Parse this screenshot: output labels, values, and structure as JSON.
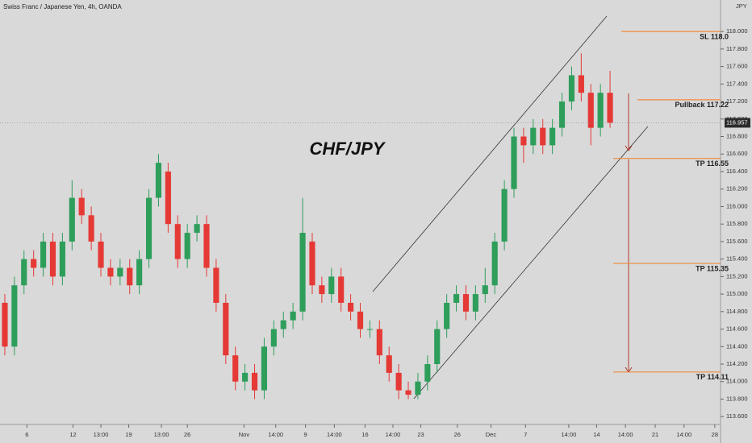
{
  "chart_data": {
    "type": "candlestick",
    "title": "Swiss Franc / Japanese Yen, 4h, OANDA",
    "annotation": "CHF/JPY",
    "currency": "JPY",
    "last_price": {
      "value": 116.957,
      "label": "116.957"
    },
    "up_color": "#2e9e5b",
    "down_color": "#e53935",
    "level_color": "#f08a3c",
    "open": [
      114.9,
      114.4,
      115.1,
      115.4,
      115.3,
      115.6,
      115.2,
      115.6,
      116.1,
      115.9,
      115.6,
      115.3,
      115.2,
      115.3,
      115.1,
      115.4,
      116.1,
      116.4,
      115.8,
      115.4,
      115.7,
      115.8,
      115.3,
      114.9,
      114.3,
      114.0,
      114.1,
      113.9,
      114.4,
      114.6,
      114.7,
      114.8,
      115.6,
      115.1,
      115.0,
      115.2,
      114.9,
      114.8,
      114.6,
      114.6,
      114.3,
      114.1,
      113.9,
      113.85,
      114.0,
      114.2,
      114.6,
      114.9,
      115.0,
      114.8,
      115.0,
      115.1,
      115.6,
      116.2,
      116.8,
      116.7,
      116.9,
      116.7,
      116.9,
      117.2,
      117.5,
      117.3,
      116.9,
      117.3
    ],
    "high": [
      115.0,
      115.2,
      115.5,
      115.5,
      115.7,
      115.7,
      115.7,
      116.3,
      116.2,
      116.0,
      115.7,
      115.4,
      115.4,
      115.4,
      115.5,
      116.2,
      116.6,
      116.5,
      115.9,
      115.8,
      115.9,
      115.9,
      115.4,
      115.0,
      114.4,
      114.2,
      114.2,
      114.5,
      114.7,
      114.8,
      114.9,
      116.1,
      115.7,
      115.2,
      115.3,
      115.3,
      115.0,
      114.9,
      114.7,
      114.7,
      114.4,
      114.2,
      114.0,
      114.1,
      114.3,
      114.7,
      115.0,
      115.1,
      115.1,
      115.1,
      115.3,
      115.7,
      116.3,
      116.9,
      116.9,
      117.0,
      117.0,
      117.0,
      117.3,
      117.6,
      117.75,
      117.4,
      117.4,
      117.55
    ],
    "low": [
      114.3,
      114.3,
      115.0,
      115.2,
      115.2,
      115.1,
      115.1,
      115.5,
      115.8,
      115.5,
      115.2,
      115.1,
      115.1,
      115.0,
      115.0,
      115.3,
      116.0,
      115.7,
      115.3,
      115.3,
      115.6,
      115.2,
      114.8,
      114.2,
      113.9,
      113.9,
      113.8,
      113.8,
      114.3,
      114.5,
      114.6,
      114.7,
      115.0,
      114.9,
      114.9,
      114.8,
      114.7,
      114.5,
      114.5,
      114.2,
      114.0,
      113.8,
      113.8,
      113.8,
      113.9,
      114.1,
      114.5,
      114.8,
      114.7,
      114.7,
      114.9,
      115.0,
      115.5,
      116.1,
      116.5,
      116.6,
      116.6,
      116.6,
      116.8,
      117.1,
      117.2,
      116.7,
      116.8,
      116.9
    ],
    "close": [
      114.4,
      115.1,
      115.4,
      115.3,
      115.6,
      115.2,
      115.6,
      116.1,
      115.9,
      115.6,
      115.3,
      115.2,
      115.3,
      115.1,
      115.4,
      116.1,
      116.5,
      115.8,
      115.4,
      115.7,
      115.8,
      115.3,
      114.9,
      114.3,
      114.0,
      114.1,
      113.9,
      114.4,
      114.6,
      114.7,
      114.8,
      115.7,
      115.1,
      115.0,
      115.2,
      114.9,
      114.8,
      114.6,
      114.6,
      114.3,
      114.1,
      113.9,
      113.85,
      114.0,
      114.2,
      114.6,
      114.9,
      115.0,
      114.8,
      115.0,
      115.1,
      115.6,
      116.2,
      116.8,
      116.7,
      116.9,
      116.7,
      116.9,
      117.2,
      117.5,
      117.3,
      116.9,
      117.3,
      116.957
    ],
    "levels": [
      {
        "value": 118.0,
        "label": "SL 118.0"
      },
      {
        "value": 117.22,
        "label": "Pullback 117.22"
      },
      {
        "value": 116.55,
        "label": "TP 116.55"
      },
      {
        "value": 115.35,
        "label": "TP 115.35"
      },
      {
        "value": 114.11,
        "label": "TP 114.11"
      }
    ],
    "xlim": [
      0,
      75
    ],
    "xticks": [
      {
        "value": 2.8,
        "label": "6"
      },
      {
        "value": 7.6,
        "label": "12"
      },
      {
        "value": 10.5,
        "label": "13:00"
      },
      {
        "value": 13.4,
        "label": "19"
      },
      {
        "value": 16.8,
        "label": "13:00"
      },
      {
        "value": 19.5,
        "label": "26"
      },
      {
        "value": 25.4,
        "label": "Nov"
      },
      {
        "value": 28.7,
        "label": "14:00"
      },
      {
        "value": 31.8,
        "label": "9"
      },
      {
        "value": 34.8,
        "label": "14:00"
      },
      {
        "value": 38.0,
        "label": "16"
      },
      {
        "value": 40.9,
        "label": "14:00"
      },
      {
        "value": 43.8,
        "label": "23"
      },
      {
        "value": 47.6,
        "label": "26"
      },
      {
        "value": 51.1,
        "label": "Dec"
      },
      {
        "value": 54.7,
        "label": "7"
      },
      {
        "value": 59.2,
        "label": "14:00"
      },
      {
        "value": 62.1,
        "label": "14"
      },
      {
        "value": 65.1,
        "label": "14:00"
      },
      {
        "value": 68.2,
        "label": "21"
      },
      {
        "value": 71.2,
        "label": "14:00"
      },
      {
        "value": 74.4,
        "label": "28"
      }
    ],
    "ylim": [
      113.51,
      118.36
    ],
    "yticks": [
      {
        "value": 113.6,
        "label": "113.600"
      },
      {
        "value": 113.8,
        "label": "113.800"
      },
      {
        "value": 114.0,
        "label": "114.000"
      },
      {
        "value": 114.2,
        "label": "114.200"
      },
      {
        "value": 114.4,
        "label": "114.400"
      },
      {
        "value": 114.6,
        "label": "114.600"
      },
      {
        "value": 114.8,
        "label": "114.800"
      },
      {
        "value": 115.0,
        "label": "115.000"
      },
      {
        "value": 115.2,
        "label": "115.200"
      },
      {
        "value": 115.4,
        "label": "115.400"
      },
      {
        "value": 115.6,
        "label": "115.600"
      },
      {
        "value": 115.8,
        "label": "115.800"
      },
      {
        "value": 116.0,
        "label": "116.000"
      },
      {
        "value": 116.2,
        "label": "116.200"
      },
      {
        "value": 116.4,
        "label": "116.400"
      },
      {
        "value": 116.6,
        "label": "116.600"
      },
      {
        "value": 116.8,
        "label": "116.800"
      },
      {
        "value": 117.0,
        "label": "117.000"
      },
      {
        "value": 117.2,
        "label": "117.200"
      },
      {
        "value": 117.4,
        "label": "117.400"
      },
      {
        "value": 117.6,
        "label": "117.600"
      },
      {
        "value": 117.8,
        "label": "117.800"
      },
      {
        "value": 118.0,
        "label": "118.000"
      }
    ]
  }
}
